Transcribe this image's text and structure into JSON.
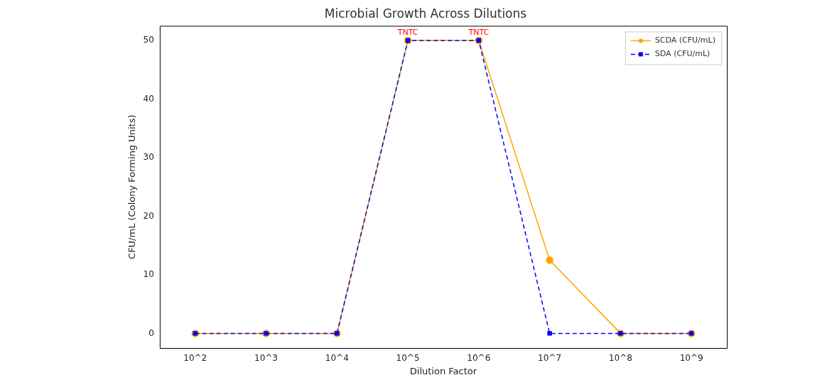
{
  "chart_data": {
    "type": "line",
    "title": "Microbial Growth Across Dilutions",
    "xlabel": "Dilution Factor",
    "ylabel": "CFU/mL (Colony Forming Units)",
    "categories": [
      "10^2",
      "10^3",
      "10^4",
      "10^5",
      "10^6",
      "10^7",
      "10^8",
      "10^9"
    ],
    "series": [
      {
        "name": "SCDA (CFU/mL)",
        "color": "#ffa500",
        "marker": "circle",
        "line_style": "solid",
        "values": [
          0,
          0,
          0,
          50,
          50,
          12.5,
          0,
          0
        ]
      },
      {
        "name": "SDA (CFU/mL)",
        "color": "#0000ff",
        "marker": "square",
        "line_style": "dashed",
        "values": [
          0,
          0,
          0,
          50,
          50,
          0,
          0,
          0
        ]
      }
    ],
    "ylim": [
      -2.5,
      52.5
    ],
    "yticks": [
      0,
      10,
      20,
      30,
      40,
      50
    ],
    "grid": false,
    "legend": "top right",
    "annotations": [
      {
        "text": "TNTC",
        "x": "10^5",
        "y": 50
      },
      {
        "text": "TNTC",
        "x": "10^6",
        "y": 50
      }
    ]
  }
}
